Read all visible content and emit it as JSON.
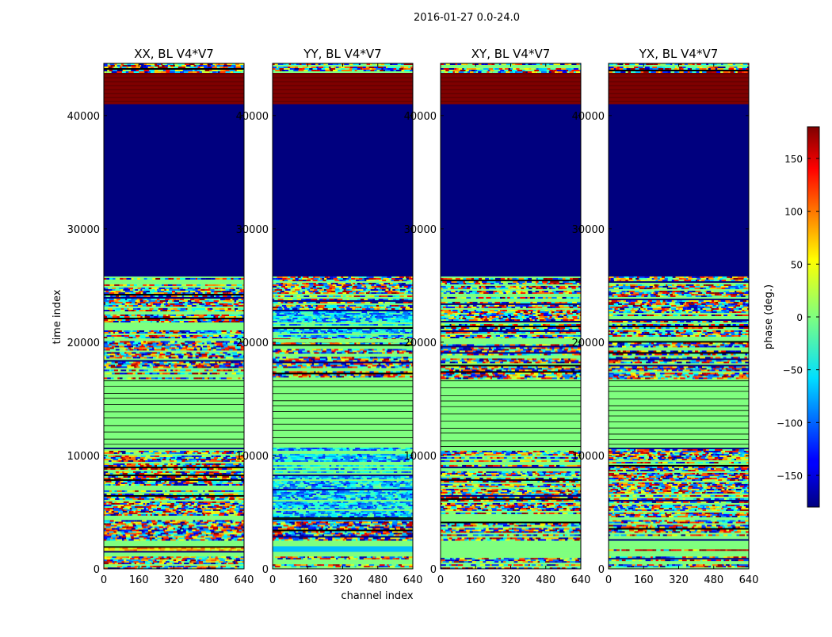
{
  "figure": {
    "suptitle": "2016-01-27 0.0-24.0",
    "xlabel": "channel index",
    "ylabel": "time index"
  },
  "colorbar": {
    "label": "phase (deg.)",
    "ticks": [
      "150",
      "100",
      "50",
      "0",
      "−50",
      "−100",
      "−150"
    ],
    "tick_values": [
      150,
      100,
      50,
      0,
      -50,
      -100,
      -150
    ],
    "range": [
      -180,
      180
    ],
    "colormap": "jet",
    "colors": [
      "#00007f",
      "#0000ff",
      "#00ffff",
      "#7fff7f",
      "#ffff00",
      "#ff0000",
      "#7f0000"
    ]
  },
  "chart_data": {
    "type": "heatmap",
    "colormap": "jet",
    "value_range_deg": [
      -180,
      180
    ],
    "x_ticks": [
      0,
      160,
      320,
      480,
      640
    ],
    "x_tick_labels": [
      "0",
      "160",
      "320",
      "480",
      "640"
    ],
    "xlim": [
      0,
      640
    ],
    "y_ticks": [
      0,
      10000,
      20000,
      30000,
      40000
    ],
    "y_tick_labels": [
      "0",
      "10000",
      "20000",
      "30000",
      "40000"
    ],
    "ylim": [
      0,
      44600
    ],
    "panels": [
      {
        "title": "XX, BL V4*V7",
        "bands": [
          {
            "from": 0,
            "to": 1100,
            "pattern": "noisy"
          },
          {
            "from": 1100,
            "to": 1500,
            "pattern": "green"
          },
          {
            "from": 1500,
            "to": 2000,
            "pattern": "yellow-fringe"
          },
          {
            "from": 2000,
            "to": 2600,
            "pattern": "green"
          },
          {
            "from": 2600,
            "to": 4300,
            "pattern": "noisy"
          },
          {
            "from": 4300,
            "to": 4600,
            "pattern": "green"
          },
          {
            "from": 4600,
            "to": 10700,
            "pattern": "noisy"
          },
          {
            "from": 10700,
            "to": 16800,
            "pattern": "lined-green"
          },
          {
            "from": 16800,
            "to": 20100,
            "pattern": "noisy"
          },
          {
            "from": 20100,
            "to": 20400,
            "pattern": "green"
          },
          {
            "from": 20400,
            "to": 23000,
            "pattern": "noisy"
          },
          {
            "from": 23000,
            "to": 25800,
            "pattern": "noisy"
          },
          {
            "from": 25800,
            "to": 41000,
            "pattern": "blue"
          },
          {
            "from": 41000,
            "to": 43900,
            "pattern": "red"
          },
          {
            "from": 43900,
            "to": 44600,
            "pattern": "noisy"
          }
        ]
      },
      {
        "title": "YY, BL V4*V7",
        "bands": [
          {
            "from": 0,
            "to": 1100,
            "pattern": "noisy"
          },
          {
            "from": 1100,
            "to": 1500,
            "pattern": "green"
          },
          {
            "from": 1500,
            "to": 2000,
            "pattern": "cyan"
          },
          {
            "from": 2000,
            "to": 2600,
            "pattern": "green"
          },
          {
            "from": 2600,
            "to": 4300,
            "pattern": "noisy"
          },
          {
            "from": 4300,
            "to": 4600,
            "pattern": "blue-stripe"
          },
          {
            "from": 4600,
            "to": 10700,
            "pattern": "blue-noisy"
          },
          {
            "from": 10700,
            "to": 16800,
            "pattern": "lined-green"
          },
          {
            "from": 16800,
            "to": 20100,
            "pattern": "noisy"
          },
          {
            "from": 20100,
            "to": 20400,
            "pattern": "red-line"
          },
          {
            "from": 20400,
            "to": 23000,
            "pattern": "blue-noisy"
          },
          {
            "from": 23000,
            "to": 25800,
            "pattern": "noisy"
          },
          {
            "from": 25800,
            "to": 41000,
            "pattern": "blue"
          },
          {
            "from": 41000,
            "to": 43900,
            "pattern": "red"
          },
          {
            "from": 43900,
            "to": 44600,
            "pattern": "noisy"
          }
        ]
      },
      {
        "title": "XY, BL V4*V7",
        "bands": [
          {
            "from": 0,
            "to": 1100,
            "pattern": "noisy"
          },
          {
            "from": 1100,
            "to": 1500,
            "pattern": "green"
          },
          {
            "from": 1500,
            "to": 2000,
            "pattern": "green"
          },
          {
            "from": 2000,
            "to": 2600,
            "pattern": "green"
          },
          {
            "from": 2600,
            "to": 4300,
            "pattern": "noisy"
          },
          {
            "from": 4300,
            "to": 4600,
            "pattern": "green"
          },
          {
            "from": 4600,
            "to": 10700,
            "pattern": "noisy"
          },
          {
            "from": 10700,
            "to": 16800,
            "pattern": "lined-green"
          },
          {
            "from": 16800,
            "to": 20100,
            "pattern": "noisy"
          },
          {
            "from": 20100,
            "to": 20400,
            "pattern": "green"
          },
          {
            "from": 20400,
            "to": 23000,
            "pattern": "noisy"
          },
          {
            "from": 23000,
            "to": 25800,
            "pattern": "noisy"
          },
          {
            "from": 25800,
            "to": 41000,
            "pattern": "blue"
          },
          {
            "from": 41000,
            "to": 43900,
            "pattern": "red"
          },
          {
            "from": 43900,
            "to": 44600,
            "pattern": "noisy"
          }
        ]
      },
      {
        "title": "YX, BL V4*V7",
        "bands": [
          {
            "from": 0,
            "to": 1100,
            "pattern": "noisy"
          },
          {
            "from": 1100,
            "to": 1500,
            "pattern": "green"
          },
          {
            "from": 1500,
            "to": 2000,
            "pattern": "red-fringe"
          },
          {
            "from": 2000,
            "to": 2600,
            "pattern": "green"
          },
          {
            "from": 2600,
            "to": 4300,
            "pattern": "noisy"
          },
          {
            "from": 4300,
            "to": 4600,
            "pattern": "green"
          },
          {
            "from": 4600,
            "to": 10700,
            "pattern": "noisy"
          },
          {
            "from": 10700,
            "to": 16800,
            "pattern": "lined-green"
          },
          {
            "from": 16800,
            "to": 20100,
            "pattern": "noisy"
          },
          {
            "from": 20100,
            "to": 20400,
            "pattern": "green"
          },
          {
            "from": 20400,
            "to": 23000,
            "pattern": "noisy"
          },
          {
            "from": 23000,
            "to": 25800,
            "pattern": "noisy"
          },
          {
            "from": 25800,
            "to": 41000,
            "pattern": "blue"
          },
          {
            "from": 41000,
            "to": 43900,
            "pattern": "red"
          },
          {
            "from": 43900,
            "to": 44600,
            "pattern": "noisy"
          }
        ]
      }
    ]
  }
}
